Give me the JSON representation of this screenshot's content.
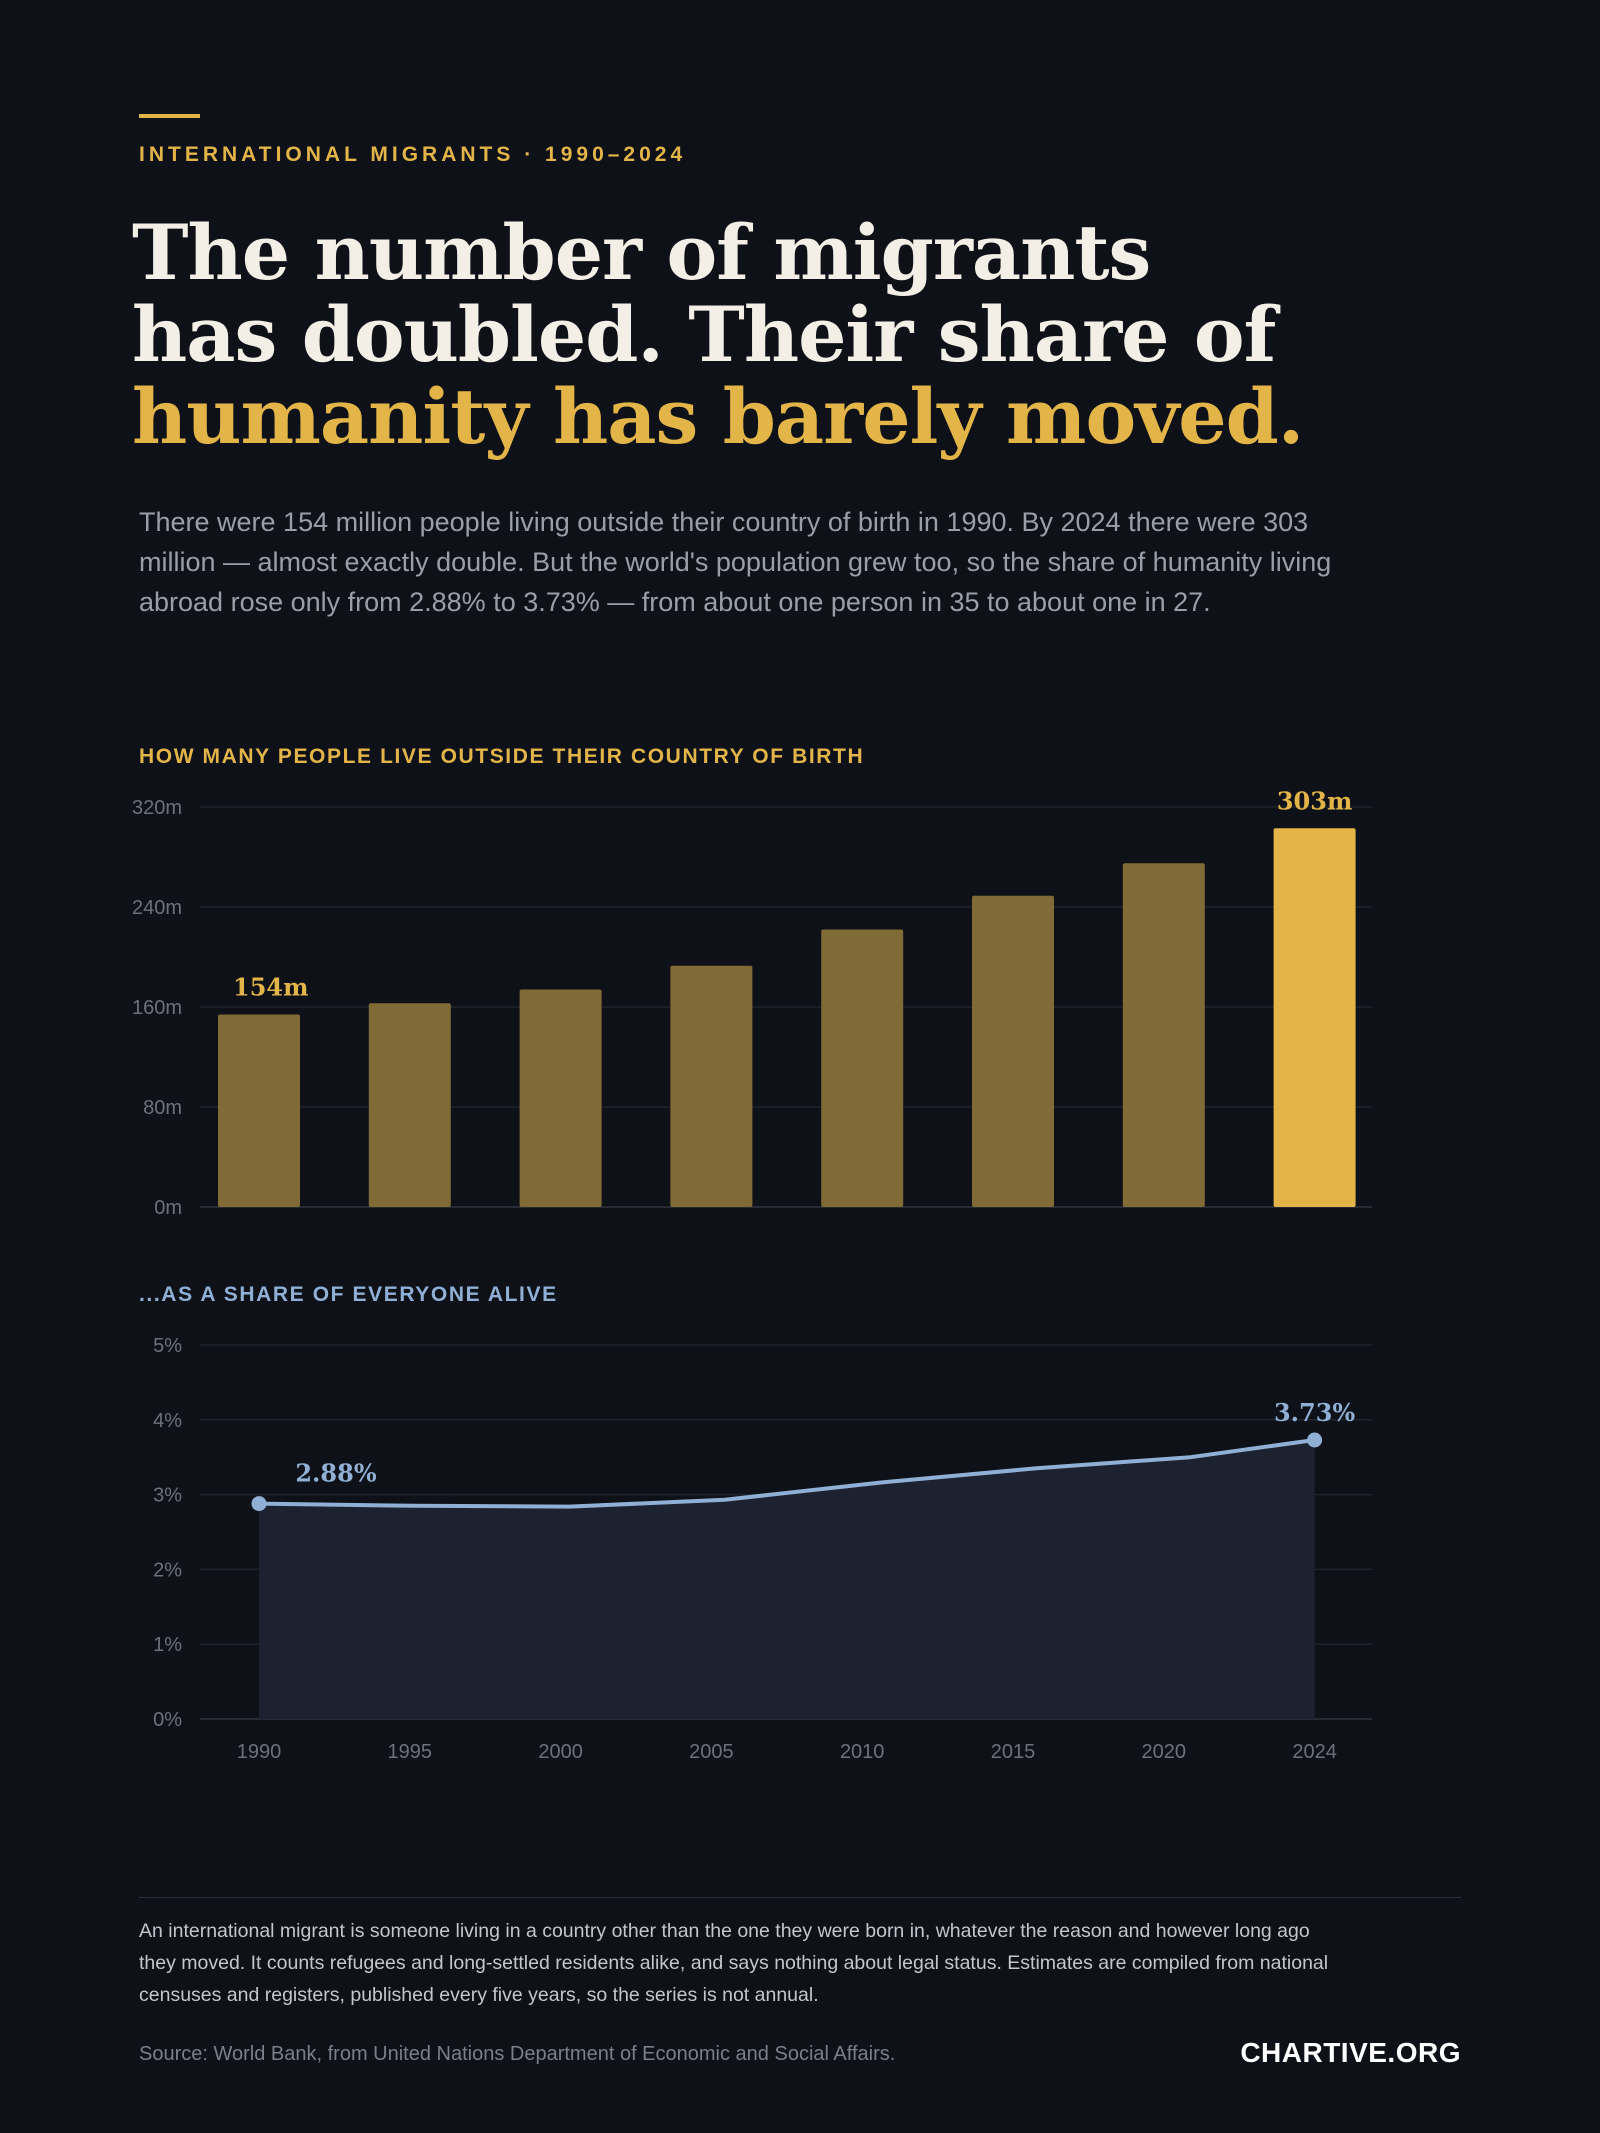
{
  "header": {
    "kicker": "INTERNATIONAL MIGRANTS · 1990–2024",
    "headline_line1": "The number of migrants",
    "headline_line2": "has doubled. Their share of",
    "headline_line3": "humanity has barely moved.",
    "intro": "There were 154 million people living outside their country of birth in 1990. By 2024 there were 303 million — almost exactly double. But the world's population grew too, so the share of humanity living abroad rose only from 2.88% to 3.73% — from about one person in 35 to about one in 27."
  },
  "colors": {
    "background": "#0e1118",
    "accent_gold": "#e3b548",
    "muted_gold": "#806a35",
    "accent_blue": "#8fb0d4"
  },
  "chart_data": [
    {
      "type": "bar",
      "title": "HOW MANY PEOPLE LIVE OUTSIDE THEIR COUNTRY OF BIRTH",
      "categories": [
        "1990",
        "1995",
        "2000",
        "2005",
        "2010",
        "2015",
        "2020",
        "2024"
      ],
      "values": [
        154,
        163,
        174,
        193,
        222,
        249,
        275,
        303
      ],
      "unit": "m",
      "ylim": [
        0,
        320
      ],
      "yticks": [
        0,
        80,
        160,
        240,
        320
      ],
      "ytick_labels": [
        "0m",
        "80m",
        "160m",
        "240m",
        "320m"
      ],
      "grid": true,
      "highlight_last": true,
      "annotations": [
        {
          "category": "1990",
          "label": "154m"
        },
        {
          "category": "2024",
          "label": "303m"
        }
      ]
    },
    {
      "type": "area",
      "title": "...AS A SHARE OF EVERYONE ALIVE",
      "x": [
        "1990",
        "1995",
        "2000",
        "2005",
        "2010",
        "2015",
        "2020",
        "2024"
      ],
      "values": [
        2.88,
        2.85,
        2.84,
        2.93,
        3.16,
        3.35,
        3.5,
        3.73
      ],
      "unit": "%",
      "ylim": [
        0,
        5
      ],
      "yticks": [
        0,
        1,
        2,
        3,
        4,
        5
      ],
      "ytick_labels": [
        "0%",
        "1%",
        "2%",
        "3%",
        "4%",
        "5%"
      ],
      "grid": true,
      "annotations": [
        {
          "x": "1990",
          "label": "2.88%"
        },
        {
          "x": "2024",
          "label": "3.73%"
        }
      ]
    }
  ],
  "footer": {
    "note": "An international migrant is someone living in a country other than the one they were born in, whatever the reason and however long ago they moved. It counts refugees and long-settled residents alike, and says nothing about legal status. Estimates are compiled from national censuses and registers, published every five years, so the series is not annual.",
    "source": "Source: World Bank, from United Nations Department of Economic and Social Affairs.",
    "brand": "CHARTIVE.ORG"
  }
}
